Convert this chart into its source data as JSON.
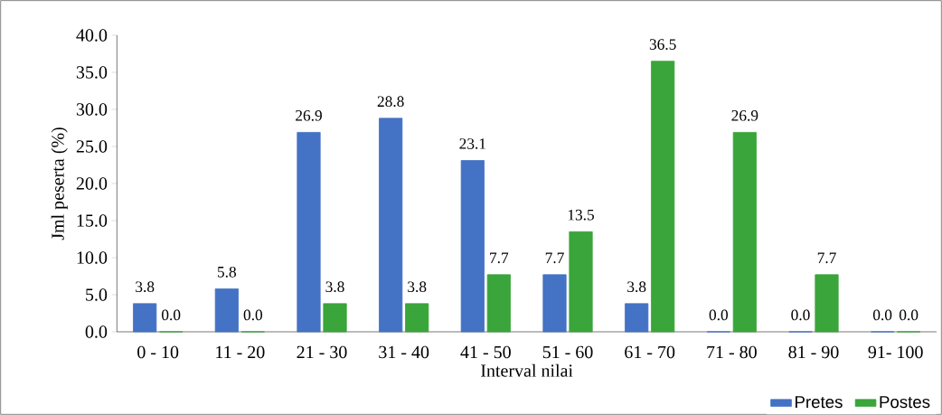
{
  "chart_data": {
    "type": "bar",
    "xlabel": "Interval nilai",
    "ylabel": "Jml peserta (%)",
    "categories": [
      "0  -  10",
      "11 - 20",
      "21 - 30",
      "31 - 40",
      "41 - 50",
      "51 - 60",
      "61 - 70",
      "71 - 80",
      "81 - 90",
      "91- 100"
    ],
    "series": [
      {
        "name": "Pretes",
        "color": "#4472c4",
        "values": [
          3.8,
          5.8,
          26.9,
          28.8,
          23.1,
          7.7,
          3.8,
          0.0,
          0.0,
          0.0
        ],
        "value_labels": [
          "3.8",
          "5.8",
          "26.9",
          "28.8",
          "23.1",
          "7.7",
          "3.8",
          "0.0",
          "0.0",
          "0.0"
        ]
      },
      {
        "name": "Postes",
        "color": "#3aa53a",
        "values": [
          0.0,
          0.0,
          3.8,
          3.8,
          7.7,
          13.5,
          36.5,
          26.9,
          7.7,
          0.0
        ],
        "value_labels": [
          "0.0",
          "0.0",
          "3.8",
          "3.8",
          "7.7",
          "13.5",
          "36.5",
          "26.9",
          "7.7",
          "0.0"
        ]
      }
    ],
    "ylim": [
      0,
      40
    ],
    "yticks": [
      {
        "value": 0,
        "label": "0.0"
      },
      {
        "value": 5,
        "label": "5.0"
      },
      {
        "value": 10,
        "label": "10.0"
      },
      {
        "value": 15,
        "label": "15.0"
      },
      {
        "value": 20,
        "label": "20.0"
      },
      {
        "value": 25,
        "label": "25.0"
      },
      {
        "value": 30,
        "label": "30.0"
      },
      {
        "value": 35,
        "label": "35.0"
      },
      {
        "value": 40,
        "label": "40.0"
      }
    ],
    "grid": false,
    "legend": "bottom right"
  }
}
